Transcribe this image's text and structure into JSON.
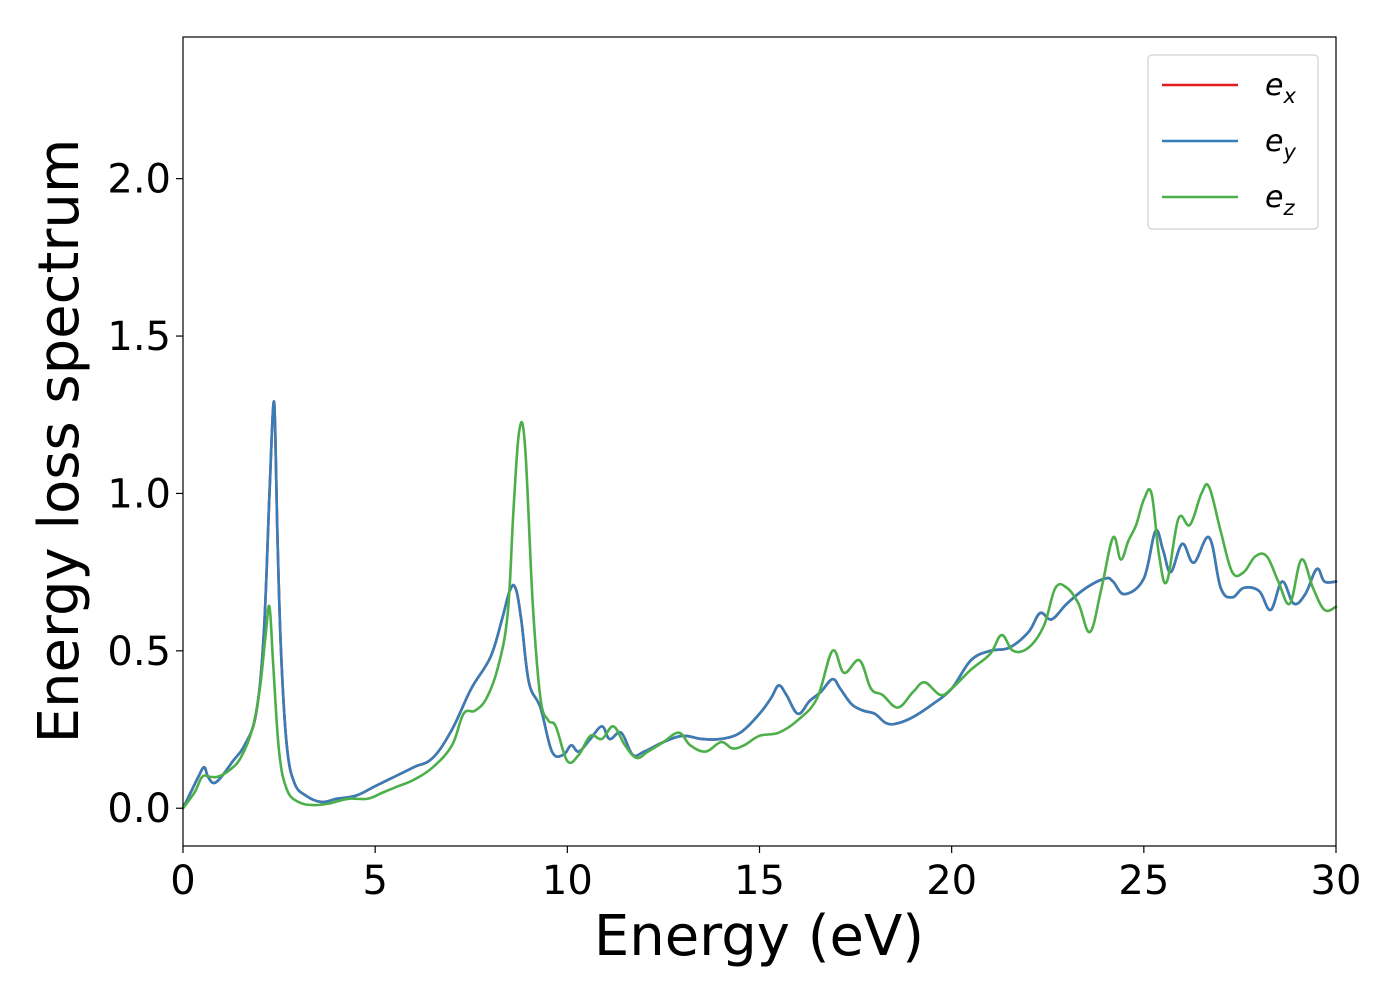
{
  "chart_data": {
    "type": "line",
    "xlabel": "Energy (eV)",
    "ylabel": "Energy loss spectrum",
    "xlim": [
      0,
      30
    ],
    "ylim": [
      -0.12,
      2.45
    ],
    "xticks": [
      0,
      5,
      10,
      15,
      20,
      25,
      30
    ],
    "yticks": [
      0.0,
      0.5,
      1.0,
      1.5,
      2.0
    ],
    "xtick_labels": [
      "0",
      "5",
      "10",
      "15",
      "20",
      "25",
      "30"
    ],
    "ytick_labels": [
      "0.0",
      "0.5",
      "1.0",
      "1.5",
      "2.0"
    ],
    "grid": false,
    "legend_position": "top-right",
    "series": [
      {
        "name": "e_x",
        "label_main": "e",
        "label_sub": "x",
        "color": "#e41a1c",
        "x": [
          0,
          0.2,
          0.4,
          0.55,
          0.65,
          0.8,
          1.0,
          1.3,
          1.6,
          1.9,
          2.1,
          2.25,
          2.35,
          2.4,
          2.45,
          2.55,
          2.7,
          2.9,
          3.2,
          3.6,
          4.0,
          4.5,
          5.0,
          5.5,
          6.0,
          6.5,
          7.0,
          7.5,
          8.0,
          8.3,
          8.5,
          8.65,
          8.8,
          9.0,
          9.3,
          9.6,
          9.9,
          10.1,
          10.3,
          10.6,
          10.9,
          11.1,
          11.4,
          11.7,
          12.0,
          12.5,
          13.0,
          13.5,
          14.0,
          14.5,
          15.0,
          15.3,
          15.5,
          15.7,
          16.0,
          16.3,
          16.6,
          16.9,
          17.1,
          17.4,
          17.7,
          18.0,
          18.3,
          18.6,
          19.0,
          19.5,
          20.0,
          20.5,
          21.0,
          21.5,
          22.0,
          22.3,
          22.6,
          23.0,
          23.5,
          24.0,
          24.2,
          24.5,
          25.0,
          25.3,
          25.5,
          25.7,
          26.0,
          26.3,
          26.7,
          27.0,
          27.3,
          27.6,
          28.0,
          28.3,
          28.6,
          28.9,
          29.2,
          29.5,
          29.7,
          30.0
        ],
        "y": [
          0,
          0.05,
          0.1,
          0.13,
          0.1,
          0.08,
          0.1,
          0.15,
          0.2,
          0.3,
          0.55,
          1.0,
          1.28,
          1.2,
          0.9,
          0.5,
          0.2,
          0.08,
          0.04,
          0.02,
          0.03,
          0.04,
          0.07,
          0.1,
          0.13,
          0.16,
          0.25,
          0.38,
          0.48,
          0.6,
          0.69,
          0.7,
          0.6,
          0.4,
          0.32,
          0.18,
          0.17,
          0.2,
          0.18,
          0.22,
          0.26,
          0.22,
          0.24,
          0.17,
          0.18,
          0.21,
          0.23,
          0.22,
          0.22,
          0.24,
          0.3,
          0.35,
          0.39,
          0.36,
          0.3,
          0.34,
          0.37,
          0.41,
          0.38,
          0.33,
          0.31,
          0.3,
          0.27,
          0.27,
          0.29,
          0.33,
          0.38,
          0.47,
          0.5,
          0.51,
          0.56,
          0.62,
          0.6,
          0.65,
          0.7,
          0.73,
          0.72,
          0.68,
          0.73,
          0.88,
          0.82,
          0.75,
          0.84,
          0.78,
          0.86,
          0.7,
          0.67,
          0.7,
          0.69,
          0.63,
          0.72,
          0.65,
          0.68,
          0.76,
          0.72,
          0.72
        ]
      },
      {
        "name": "e_y",
        "label_main": "e",
        "label_sub": "y",
        "color": "#377eb8",
        "x": [
          0,
          0.2,
          0.4,
          0.55,
          0.65,
          0.8,
          1.0,
          1.3,
          1.6,
          1.9,
          2.1,
          2.25,
          2.35,
          2.4,
          2.45,
          2.55,
          2.7,
          2.9,
          3.2,
          3.6,
          4.0,
          4.5,
          5.0,
          5.5,
          6.0,
          6.5,
          7.0,
          7.5,
          8.0,
          8.3,
          8.5,
          8.65,
          8.8,
          9.0,
          9.3,
          9.6,
          9.9,
          10.1,
          10.3,
          10.6,
          10.9,
          11.1,
          11.4,
          11.7,
          12.0,
          12.5,
          13.0,
          13.5,
          14.0,
          14.5,
          15.0,
          15.3,
          15.5,
          15.7,
          16.0,
          16.3,
          16.6,
          16.9,
          17.1,
          17.4,
          17.7,
          18.0,
          18.3,
          18.6,
          19.0,
          19.5,
          20.0,
          20.5,
          21.0,
          21.5,
          22.0,
          22.3,
          22.6,
          23.0,
          23.5,
          24.0,
          24.2,
          24.5,
          25.0,
          25.3,
          25.5,
          25.7,
          26.0,
          26.3,
          26.7,
          27.0,
          27.3,
          27.6,
          28.0,
          28.3,
          28.6,
          28.9,
          29.2,
          29.5,
          29.7,
          30.0
        ],
        "y": [
          0,
          0.05,
          0.1,
          0.13,
          0.1,
          0.08,
          0.1,
          0.15,
          0.2,
          0.3,
          0.55,
          1.0,
          1.28,
          1.2,
          0.9,
          0.5,
          0.2,
          0.08,
          0.04,
          0.02,
          0.03,
          0.04,
          0.07,
          0.1,
          0.13,
          0.16,
          0.25,
          0.38,
          0.48,
          0.6,
          0.69,
          0.7,
          0.6,
          0.4,
          0.32,
          0.18,
          0.17,
          0.2,
          0.18,
          0.22,
          0.26,
          0.22,
          0.24,
          0.17,
          0.18,
          0.21,
          0.23,
          0.22,
          0.22,
          0.24,
          0.3,
          0.35,
          0.39,
          0.36,
          0.3,
          0.34,
          0.37,
          0.41,
          0.38,
          0.33,
          0.31,
          0.3,
          0.27,
          0.27,
          0.29,
          0.33,
          0.38,
          0.47,
          0.5,
          0.51,
          0.56,
          0.62,
          0.6,
          0.65,
          0.7,
          0.73,
          0.72,
          0.68,
          0.73,
          0.88,
          0.82,
          0.75,
          0.84,
          0.78,
          0.86,
          0.7,
          0.67,
          0.7,
          0.69,
          0.63,
          0.72,
          0.65,
          0.68,
          0.76,
          0.72,
          0.72
        ]
      },
      {
        "name": "e_z",
        "label_main": "e",
        "label_sub": "z",
        "color": "#4daf4a",
        "x": [
          0,
          0.3,
          0.5,
          0.7,
          0.9,
          1.2,
          1.5,
          1.8,
          2.0,
          2.15,
          2.25,
          2.35,
          2.5,
          2.7,
          3.0,
          3.4,
          3.8,
          4.3,
          4.8,
          5.2,
          5.6,
          6.0,
          6.5,
          7.0,
          7.3,
          7.6,
          7.9,
          8.2,
          8.45,
          8.6,
          8.75,
          8.9,
          9.1,
          9.3,
          9.5,
          9.7,
          10.0,
          10.3,
          10.6,
          10.9,
          11.2,
          11.5,
          11.8,
          12.1,
          12.5,
          12.9,
          13.2,
          13.6,
          14.0,
          14.3,
          14.6,
          15.0,
          15.5,
          16.0,
          16.5,
          16.9,
          17.2,
          17.6,
          17.9,
          18.2,
          18.6,
          19.0,
          19.3,
          19.7,
          20.0,
          20.5,
          21.0,
          21.3,
          21.6,
          22.0,
          22.4,
          22.7,
          23.0,
          23.3,
          23.6,
          23.9,
          24.2,
          24.4,
          24.6,
          24.8,
          25.0,
          25.2,
          25.4,
          25.6,
          25.9,
          26.2,
          26.5,
          26.7,
          27.0,
          27.3,
          27.6,
          27.9,
          28.2,
          28.5,
          28.8,
          29.1,
          29.4,
          29.7,
          30.0
        ],
        "y": [
          0,
          0.05,
          0.1,
          0.1,
          0.1,
          0.12,
          0.16,
          0.25,
          0.38,
          0.55,
          0.64,
          0.45,
          0.18,
          0.06,
          0.02,
          0.01,
          0.015,
          0.03,
          0.03,
          0.05,
          0.07,
          0.09,
          0.13,
          0.2,
          0.3,
          0.31,
          0.35,
          0.45,
          0.62,
          0.95,
          1.2,
          1.15,
          0.65,
          0.35,
          0.28,
          0.26,
          0.15,
          0.17,
          0.23,
          0.22,
          0.26,
          0.2,
          0.16,
          0.18,
          0.21,
          0.24,
          0.2,
          0.18,
          0.21,
          0.19,
          0.2,
          0.23,
          0.24,
          0.28,
          0.35,
          0.5,
          0.43,
          0.47,
          0.38,
          0.36,
          0.32,
          0.37,
          0.4,
          0.36,
          0.38,
          0.44,
          0.49,
          0.55,
          0.5,
          0.51,
          0.58,
          0.7,
          0.7,
          0.65,
          0.56,
          0.7,
          0.86,
          0.79,
          0.85,
          0.9,
          0.98,
          1.0,
          0.8,
          0.72,
          0.92,
          0.9,
          1.0,
          1.02,
          0.88,
          0.75,
          0.75,
          0.8,
          0.8,
          0.72,
          0.65,
          0.79,
          0.7,
          0.63,
          0.64
        ]
      }
    ]
  }
}
